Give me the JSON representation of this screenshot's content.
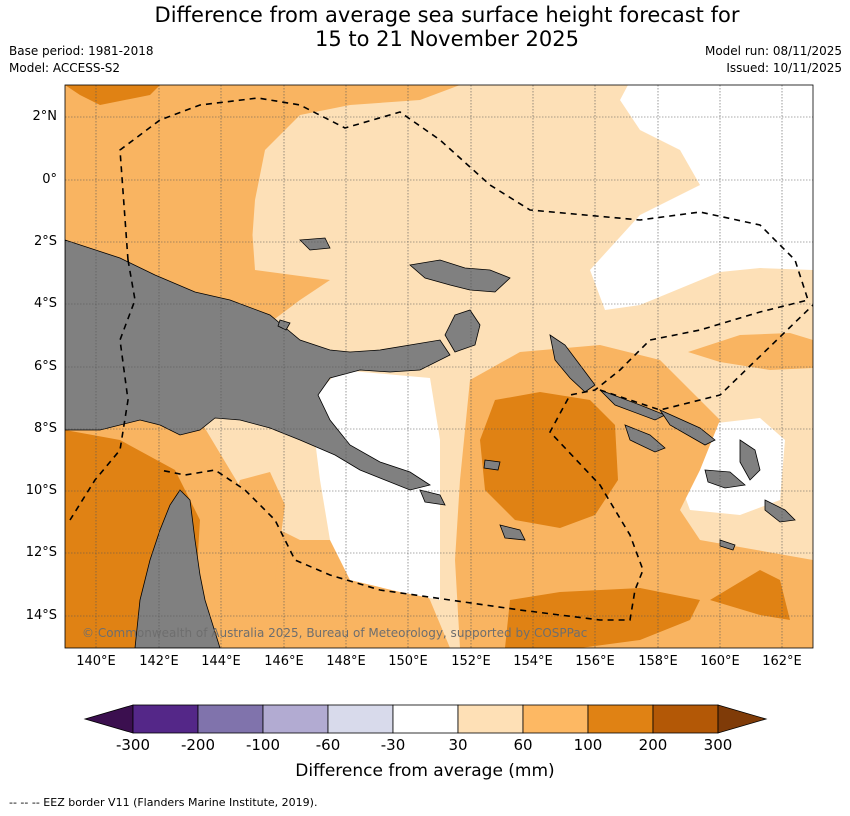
{
  "header": {
    "title_line1": "Difference from average sea surface height forecast for",
    "title_line2": "15 to 21 November 2025",
    "base_period": "Base period: 1981-2018",
    "model": "Model: ACCESS-S2",
    "model_run": "Model run: 08/11/2025",
    "issued": "Issued: 10/11/2025"
  },
  "map": {
    "lat_labels": [
      "2°N",
      "0°",
      "2°S",
      "4°S",
      "6°S",
      "8°S",
      "10°S",
      "12°S",
      "14°S"
    ],
    "lon_labels": [
      "140°E",
      "142°E",
      "144°E",
      "146°E",
      "148°E",
      "150°E",
      "152°E",
      "154°E",
      "156°E",
      "158°E",
      "160°E",
      "162°E"
    ],
    "copyright": "© Commonwealth of Australia 2025, Bureau of Meteorology, supported by COSPPac",
    "colors": {
      "land": "#808080",
      "neutral": "#ffffff",
      "band_30_60": "#fde0b7",
      "band_60_100": "#f9b461",
      "band_100_200": "#e08214",
      "band_200_300": "#b35806",
      "eez_border": "#000000"
    }
  },
  "colorbar": {
    "labels": [
      "-300",
      "-200",
      "-100",
      "-60",
      "-30",
      "30",
      "60",
      "100",
      "200",
      "300"
    ],
    "colors": [
      "#3b0f4f",
      "#542788",
      "#8073ac",
      "#b2abd2",
      "#d8daeb",
      "#ffffff",
      "#fee0b6",
      "#fdb863",
      "#e08214",
      "#b35806",
      "#7f3b08"
    ],
    "title": "Difference from average (mm)"
  },
  "footnote": "--  --  -- EEZ border V11 (Flanders Marine Institute, 2019)."
}
